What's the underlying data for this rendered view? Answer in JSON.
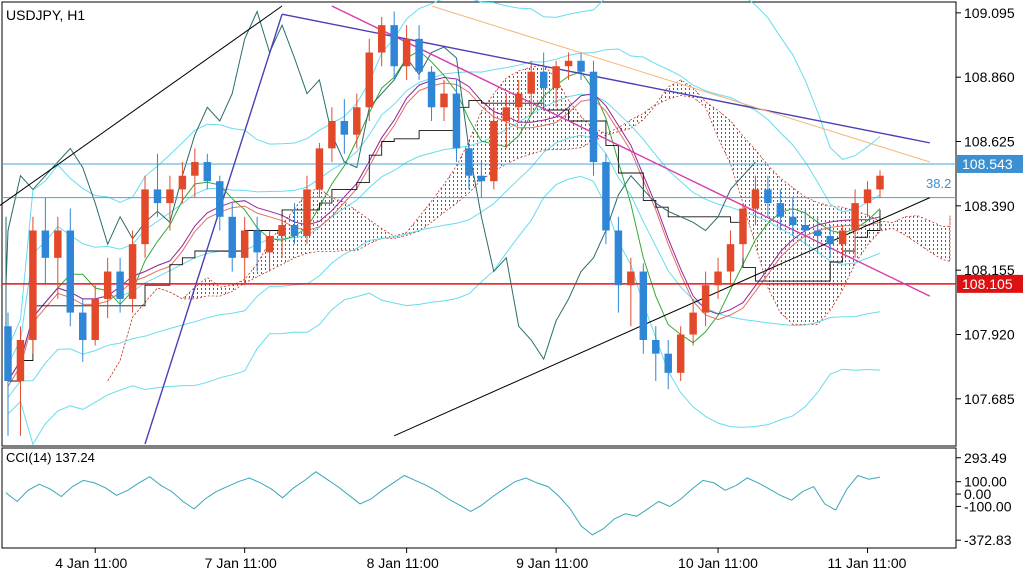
{
  "header": {
    "symbol_label": "USDJPY, H1",
    "indicator_label": "CCI(14) 137.24"
  },
  "fib_label": "38.2",
  "colors": {
    "background": "#ffffff",
    "frame": "#000000",
    "bull_candle": "#e2492b",
    "bear_candle": "#2f86d6",
    "bollinger": "#66ddee",
    "envelope_dark": "#555555",
    "trend_blue": "#4a3fb8",
    "trend_magenta": "#d63cb0",
    "trend_orange": "#f2b77a",
    "hline_blue": "#4aa3d9",
    "hline_red": "#ee1111",
    "cci_line": "#3aa7b9",
    "cloud_red": "#c0392b",
    "cloud_blue": "#2b3fb3",
    "price_tag_blue": "#3a90d0",
    "price_tag_red": "#dd1111"
  },
  "chart_data": [
    {
      "type": "candlestick",
      "title": "USDJPY, H1",
      "ylim": [
        107.52,
        109.12
      ],
      "y_ticks": [
        109.095,
        108.86,
        108.625,
        108.39,
        108.155,
        107.92,
        107.685
      ],
      "x_ticks": [
        "4 Jan 11:00",
        "7 Jan 11:00",
        "8 Jan 11:00",
        "9 Jan 11:00",
        "10 Jan 11:00",
        "11 Jan 11:00"
      ],
      "horizontal_levels": [
        {
          "value": 108.543,
          "label": "108.543",
          "color": "blue"
        },
        {
          "value": 108.42,
          "label": "38.2",
          "color": "blue"
        },
        {
          "value": 108.105,
          "label": "108.105",
          "color": "red"
        }
      ],
      "series": [
        {
          "name": "USDJPY",
          "ohlc": [
            [
              107.95,
              108.0,
              107.55,
              107.75
            ],
            [
              107.75,
              107.95,
              107.55,
              107.9
            ],
            [
              107.9,
              108.35,
              107.85,
              108.3
            ],
            [
              108.3,
              108.42,
              108.1,
              108.2
            ],
            [
              108.2,
              108.35,
              108.05,
              108.3
            ],
            [
              108.3,
              108.38,
              107.95,
              108.0
            ],
            [
              108.0,
              108.05,
              107.82,
              107.9
            ],
            [
              107.9,
              108.1,
              107.88,
              108.05
            ],
            [
              108.05,
              108.2,
              107.98,
              108.15
            ],
            [
              108.15,
              108.2,
              108.0,
              108.05
            ],
            [
              108.05,
              108.3,
              108.0,
              108.25
            ],
            [
              108.25,
              108.5,
              108.2,
              108.45
            ],
            [
              108.45,
              108.58,
              108.35,
              108.4
            ],
            [
              108.4,
              108.5,
              108.3,
              108.45
            ],
            [
              108.45,
              108.55,
              108.4,
              108.5
            ],
            [
              108.5,
              108.6,
              108.42,
              108.55
            ],
            [
              108.55,
              108.58,
              108.45,
              108.48
            ],
            [
              108.48,
              108.5,
              108.3,
              108.35
            ],
            [
              108.35,
              108.4,
              108.15,
              108.2
            ],
            [
              108.2,
              108.35,
              108.1,
              108.3
            ],
            [
              108.3,
              108.35,
              108.15,
              108.22
            ],
            [
              108.22,
              108.3,
              108.15,
              108.28
            ],
            [
              108.28,
              108.35,
              108.2,
              108.32
            ],
            [
              108.32,
              108.4,
              108.25,
              108.28
            ],
            [
              108.28,
              108.5,
              108.25,
              108.45
            ],
            [
              108.45,
              108.62,
              108.42,
              108.6
            ],
            [
              108.6,
              108.75,
              108.55,
              108.7
            ],
            [
              108.7,
              108.78,
              108.58,
              108.65
            ],
            [
              108.65,
              108.8,
              108.6,
              108.75
            ],
            [
              108.75,
              109.0,
              108.7,
              108.95
            ],
            [
              108.95,
              109.08,
              108.9,
              109.05
            ],
            [
              109.05,
              109.1,
              108.85,
              108.9
            ],
            [
              108.9,
              109.05,
              108.85,
              109.0
            ],
            [
              109.0,
              109.05,
              108.85,
              108.88
            ],
            [
              108.88,
              108.9,
              108.7,
              108.75
            ],
            [
              108.75,
              108.85,
              108.7,
              108.8
            ],
            [
              108.8,
              108.85,
              108.55,
              108.6
            ],
            [
              108.6,
              108.62,
              108.45,
              108.5
            ],
            [
              108.5,
              108.55,
              108.42,
              108.48
            ],
            [
              108.48,
              108.75,
              108.45,
              108.7
            ],
            [
              108.7,
              108.8,
              108.6,
              108.75
            ],
            [
              108.75,
              108.85,
              108.7,
              108.8
            ],
            [
              108.8,
              108.92,
              108.72,
              108.88
            ],
            [
              108.88,
              108.95,
              108.75,
              108.82
            ],
            [
              108.82,
              108.92,
              108.75,
              108.9
            ],
            [
              108.9,
              108.95,
              108.85,
              108.92
            ],
            [
              108.92,
              108.95,
              108.85,
              108.88
            ],
            [
              108.88,
              108.92,
              108.5,
              108.55
            ],
            [
              108.55,
              108.58,
              108.25,
              108.3
            ],
            [
              108.3,
              108.35,
              108.0,
              108.1
            ],
            [
              108.1,
              108.2,
              107.95,
              108.15
            ],
            [
              108.15,
              108.18,
              107.85,
              107.9
            ],
            [
              107.9,
              107.95,
              107.75,
              107.85
            ],
            [
              107.85,
              107.9,
              107.72,
              107.78
            ],
            [
              107.78,
              107.95,
              107.75,
              107.92
            ],
            [
              107.92,
              108.05,
              107.88,
              108.0
            ],
            [
              108.0,
              108.15,
              107.95,
              108.1
            ],
            [
              108.1,
              108.2,
              108.05,
              108.15
            ],
            [
              108.15,
              108.3,
              108.1,
              108.25
            ],
            [
              108.25,
              108.4,
              108.2,
              108.38
            ],
            [
              108.38,
              108.5,
              108.32,
              108.45
            ],
            [
              108.45,
              108.5,
              108.35,
              108.4
            ],
            [
              108.4,
              108.45,
              108.3,
              108.35
            ],
            [
              108.35,
              108.42,
              108.28,
              108.32
            ],
            [
              108.32,
              108.38,
              108.25,
              108.3
            ],
            [
              108.3,
              108.35,
              108.22,
              108.28
            ],
            [
              108.28,
              108.32,
              108.2,
              108.25
            ],
            [
              108.25,
              108.32,
              108.2,
              108.3
            ],
            [
              108.3,
              108.45,
              108.2,
              108.4
            ],
            [
              108.4,
              108.48,
              108.35,
              108.45
            ],
            [
              108.45,
              108.52,
              108.42,
              108.5
            ]
          ]
        }
      ]
    },
    {
      "type": "line",
      "title": "CCI(14) 137.24",
      "ylim": [
        -420,
        340
      ],
      "y_ticks": [
        293.49,
        100.0,
        0.0,
        -100.0,
        -372.83
      ],
      "y_tick_labels": [
        "293.49",
        "100.00",
        "0.00",
        "-100.00",
        "-372.83"
      ],
      "series": [
        {
          "name": "CCI(14)",
          "values": [
            10,
            -60,
            30,
            80,
            40,
            -20,
            60,
            110,
            90,
            50,
            -10,
            30,
            90,
            140,
            70,
            20,
            -60,
            -120,
            -40,
            20,
            60,
            100,
            130,
            90,
            40,
            -30,
            50,
            110,
            180,
            120,
            60,
            -10,
            -80,
            -40,
            30,
            90,
            150,
            110,
            70,
            20,
            -40,
            -90,
            -140,
            -90,
            -20,
            40,
            100,
            130,
            90,
            60,
            -20,
            -120,
            -260,
            -330,
            -280,
            -200,
            -160,
            -180,
            -120,
            -60,
            -100,
            -40,
            40,
            110,
            90,
            30,
            70,
            130,
            90,
            40,
            -10,
            -50,
            20,
            60,
            -80,
            -130,
            40,
            150,
            120,
            137
          ]
        }
      ]
    }
  ]
}
